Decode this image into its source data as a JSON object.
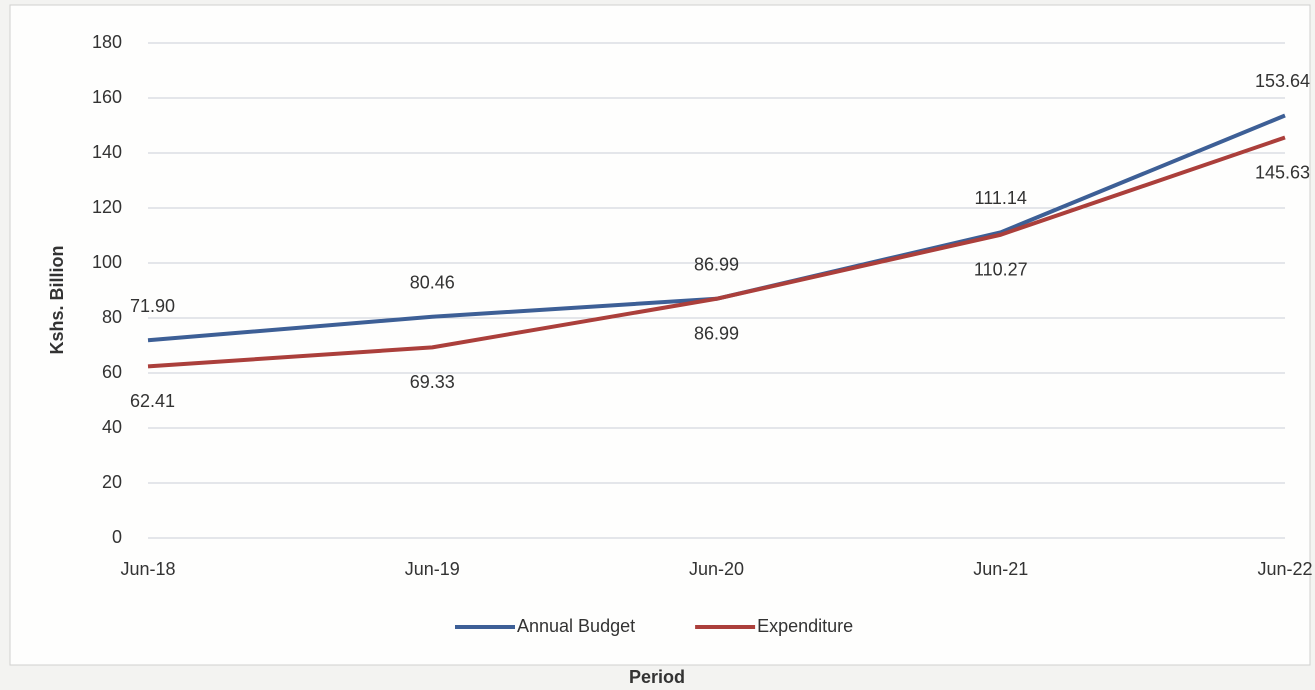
{
  "chart_data": {
    "type": "line",
    "categories": [
      "Jun-18",
      "Jun-19",
      "Jun-20",
      "Jun-21",
      "Jun-22"
    ],
    "series": [
      {
        "name": "Annual Budget",
        "color": "#3d5f96",
        "values": [
          71.9,
          80.46,
          86.99,
          111.14,
          153.64
        ],
        "value_labels": [
          "71.90",
          "80.46",
          "86.99",
          "111.14",
          "153.64"
        ]
      },
      {
        "name": "Expenditure",
        "color": "#ab3f3b",
        "values": [
          62.41,
          69.33,
          86.99,
          110.27,
          145.63
        ],
        "value_labels": [
          "62.41",
          "69.33",
          "86.99",
          "110.27",
          "145.63"
        ]
      }
    ],
    "ylabel": "Kshs. Billion",
    "xlabel": "Period",
    "ylim": [
      0,
      180
    ],
    "yticks": [
      0,
      20,
      40,
      60,
      80,
      100,
      120,
      140,
      160,
      180
    ],
    "grid": true,
    "legend": "bottom"
  }
}
